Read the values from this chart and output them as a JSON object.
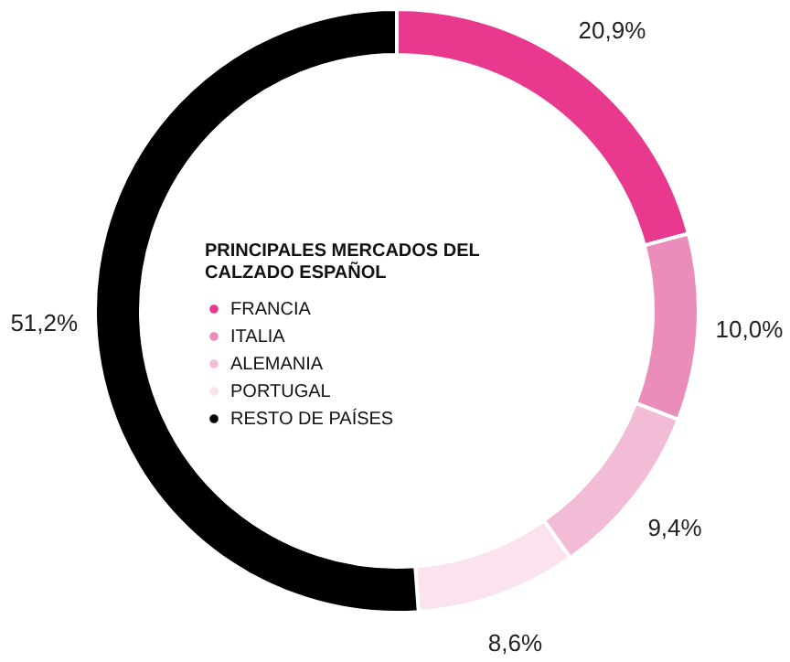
{
  "chart_data": {
    "type": "donut",
    "legend_title": "PRINCIPALES MERCADOS DEL CALZADO ESPAÑOL",
    "legend": "center",
    "categories": [
      "FRANCIA",
      "ITALIA",
      "ALEMANIA",
      "PORTUGAL",
      "RESTO DE PAÍSES"
    ],
    "values": [
      20.9,
      10.0,
      9.4,
      8.6,
      51.2
    ],
    "value_labels": [
      "20,9%",
      "10,0%",
      "9,4%",
      "8,6%",
      "51,2%"
    ],
    "colors": [
      "#e8398e",
      "#ea8dba",
      "#f3bcd6",
      "#fae3ee",
      "#000000"
    ]
  }
}
